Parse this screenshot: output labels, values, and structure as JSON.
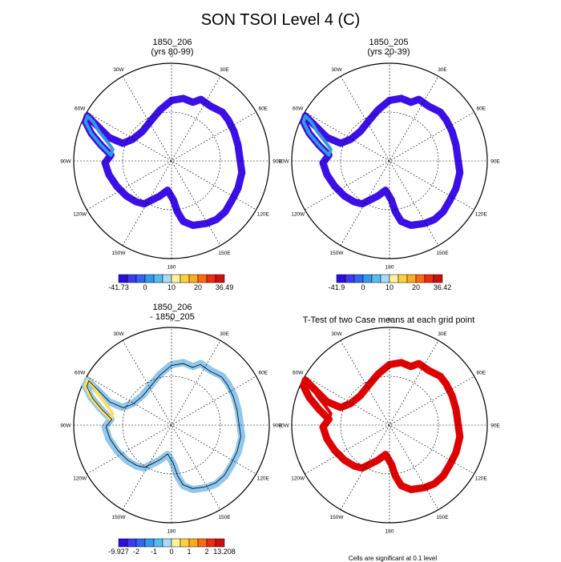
{
  "title": "SON TSOI Level 4 (C)",
  "tick_labels": {
    "top": "0",
    "tr": "30E",
    "rt": "60E",
    "right": "90E",
    "rb": "120E",
    "br": "150E",
    "bottom": "180",
    "bl": "150W",
    "lb": "120W",
    "left": "90W",
    "lt": "60W",
    "tl": "30W"
  },
  "panels": [
    {
      "id": "p1",
      "title_line1": "1850_206",
      "title_line2": "(yrs 80-99)",
      "fill": "#3a10e6",
      "accent": "#3399dd",
      "colorbar": {
        "colors": [
          "#2b0fe0",
          "#3b3bf0",
          "#3366ee",
          "#3399ee",
          "#55bbf0",
          "#a8dcf5",
          "#fff3a0",
          "#ffd040",
          "#ffaa20",
          "#ff6a10",
          "#ee2a10",
          "#cc1010"
        ],
        "labels": [
          "-41.73",
          "0",
          "10",
          "20",
          "36.49"
        ]
      }
    },
    {
      "id": "p2",
      "title_line1": "1850_205",
      "title_line2": "(yrs 20-39)",
      "fill": "#3a10e6",
      "accent": "#3399dd",
      "colorbar": {
        "colors": [
          "#2b0fe0",
          "#3b3bf0",
          "#3366ee",
          "#3399ee",
          "#55bbf0",
          "#a8dcf5",
          "#fff3a0",
          "#ffd040",
          "#ffaa20",
          "#ff6a10",
          "#ee2a10",
          "#cc1010"
        ],
        "labels": [
          "-41.9",
          "0",
          "10",
          "20",
          "36.42"
        ]
      }
    },
    {
      "id": "p3",
      "title_line1": "1850_206",
      "title_line2": "- 1850_205",
      "fill": "#8fc7ee",
      "accent": "#ffe066",
      "colorbar": {
        "colors": [
          "#2b0fe0",
          "#3b3bf0",
          "#3366ee",
          "#3399ee",
          "#55bbf0",
          "#a8dcf5",
          "#fff3a0",
          "#ffd040",
          "#ffaa20",
          "#ff6a10",
          "#ee2a10",
          "#cc1010"
        ],
        "labels": [
          "-9.927",
          "-2",
          "-1",
          "0",
          "1",
          "2",
          "13.208"
        ]
      }
    },
    {
      "id": "p4",
      "title_line1": "T-Test of two Case means at each grid point",
      "title_line2": "",
      "fill": "#dd0000",
      "accent": "#dd0000",
      "colorbar": null
    }
  ],
  "footer_note": "Cells are significant at 0.1 level"
}
